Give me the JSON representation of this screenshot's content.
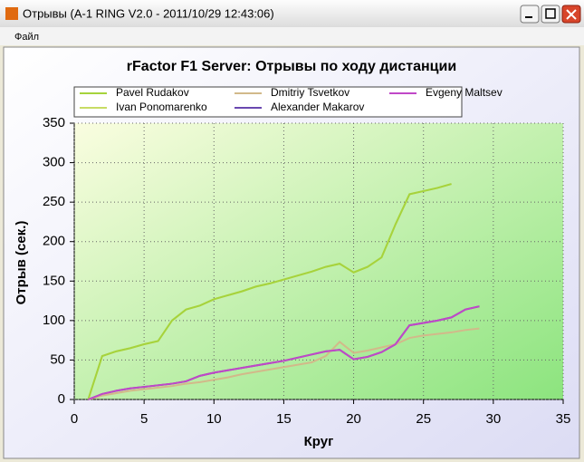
{
  "window": {
    "title": "Отрывы (A-1 RING V2.0 - 2011/10/29 12:43:06)"
  },
  "menu": {
    "items": [
      "Файл"
    ]
  },
  "chart_data": {
    "type": "line",
    "title": "rFactor F1 Server: Отрывы по ходу дистанции",
    "x_label": "Круг",
    "y_label": "Отрыв (сек.)",
    "x": [
      1,
      2,
      3,
      4,
      5,
      6,
      7,
      8,
      9,
      10,
      11,
      12,
      13,
      14,
      15,
      16,
      17,
      18,
      19,
      20,
      21,
      22,
      23,
      24,
      25,
      26,
      27,
      28,
      29
    ],
    "series": [
      {
        "name": "Pavel Rudakov",
        "color": "#a6d33c",
        "values": [
          0,
          55,
          61,
          65,
          70,
          74,
          100,
          114,
          119,
          127,
          132,
          137,
          143,
          147,
          152,
          157,
          162,
          168,
          172,
          161,
          168,
          180,
          222,
          260,
          264,
          268,
          273,
          null,
          null
        ]
      },
      {
        "name": "Dmitriy Tsvetkov",
        "color": "#d2b98a",
        "values": [
          0,
          5,
          8,
          11,
          13,
          15,
          17,
          20,
          22,
          25,
          28,
          32,
          35,
          38,
          41,
          44,
          47,
          55,
          73,
          59,
          62,
          66,
          70,
          78,
          81,
          83,
          85,
          88,
          90
        ]
      },
      {
        "name": "Evgeny Maltsev",
        "color": "#c048c8",
        "values": [
          0,
          7,
          11,
          14,
          16,
          18,
          20,
          23,
          30,
          34,
          37,
          40,
          43,
          46,
          49,
          53,
          57,
          61,
          63,
          51,
          54,
          60,
          70,
          94,
          97,
          100,
          104,
          114,
          118
        ]
      },
      {
        "name": "Ivan Ponomarenko",
        "color": "#c8dc64",
        "values": [
          0,
          55,
          61,
          65,
          70,
          74,
          100,
          114,
          119,
          127,
          132,
          137,
          143,
          147,
          152,
          157,
          162,
          168,
          172,
          161,
          168,
          180,
          222,
          260,
          264,
          268,
          273,
          null,
          null
        ]
      },
      {
        "name": "Alexander Makarov",
        "color": "#6a48b0",
        "values": [
          0,
          7,
          11,
          14,
          16,
          18,
          20,
          23,
          30,
          34,
          37,
          40,
          43,
          46,
          49,
          53,
          57,
          61,
          63,
          51,
          54,
          60,
          70,
          94,
          97,
          100,
          104,
          114,
          118
        ]
      }
    ],
    "xlim": [
      0,
      35
    ],
    "xticks": [
      0,
      5,
      10,
      15,
      20,
      25,
      30,
      35
    ],
    "ylim": [
      0,
      350
    ],
    "yticks": [
      0,
      50,
      100,
      150,
      200,
      250,
      300,
      350
    ],
    "grid": true
  }
}
